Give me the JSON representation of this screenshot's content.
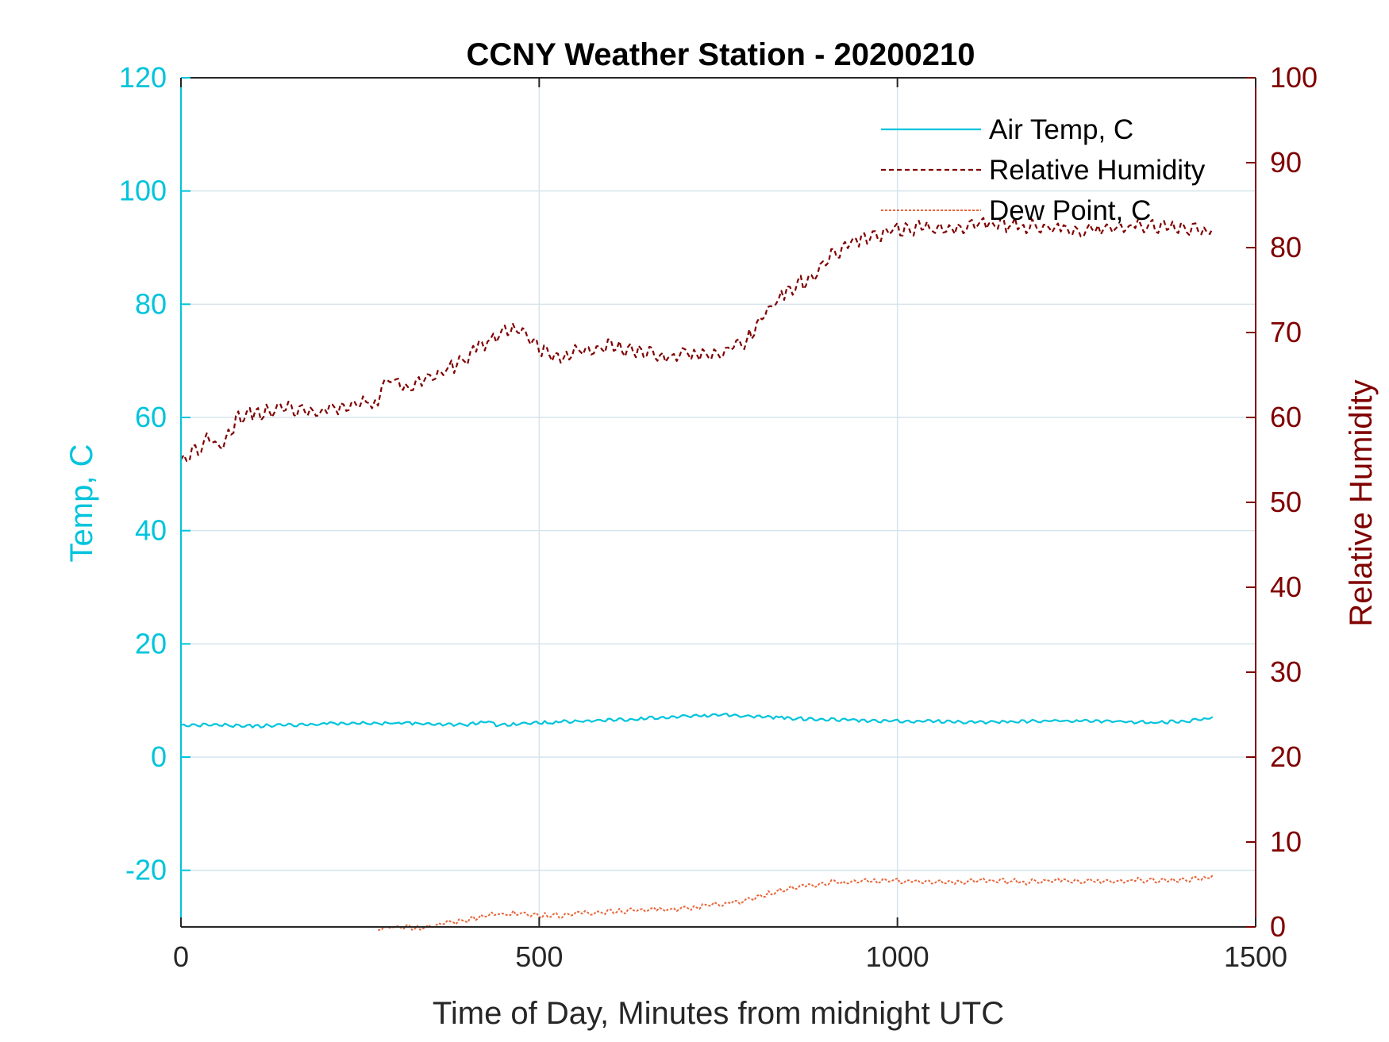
{
  "chart_data": {
    "type": "line",
    "title": "CCNY Weather Station - 20200210",
    "xlabel": "Time of Day, Minutes from midnight UTC",
    "ylabel_left": "Temp, C",
    "ylabel_right": "Relative Humidity",
    "xlim": [
      0,
      1500
    ],
    "ylim_left": [
      -30,
      120
    ],
    "ylim_right": [
      0,
      100
    ],
    "xticks": [
      "0",
      "500",
      "1000",
      "1500"
    ],
    "yticks_left": [
      "120",
      "100",
      "80",
      "60",
      "40",
      "20",
      "0",
      "-20"
    ],
    "yticks_right": [
      "100",
      "90",
      "80",
      "70",
      "60",
      "50",
      "40",
      "30",
      "20",
      "10",
      "0"
    ],
    "grid": true,
    "legend_position": "top-right",
    "colors": {
      "temp": "#00c4dc",
      "rh": "#800000",
      "dew": "#e8663a",
      "grid": "#d6e4ec",
      "axis_x": "#262626"
    },
    "series": [
      {
        "name": "Air Temp, C",
        "axis": "left",
        "style": "solid",
        "x": [
          0,
          50,
          100,
          150,
          200,
          250,
          300,
          350,
          400,
          430,
          440,
          460,
          500,
          550,
          600,
          650,
          700,
          750,
          800,
          850,
          900,
          950,
          1000,
          1050,
          1100,
          1150,
          1200,
          1250,
          1300,
          1350,
          1400,
          1440
        ],
        "y": [
          5.8,
          5.9,
          5.6,
          5.8,
          6.0,
          6.1,
          6.1,
          6.0,
          5.9,
          6.5,
          5.8,
          5.9,
          6.2,
          6.5,
          6.7,
          7.0,
          7.3,
          7.6,
          7.4,
          7.0,
          6.8,
          6.6,
          6.5,
          6.5,
          6.3,
          6.4,
          6.5,
          6.6,
          6.5,
          6.3,
          6.4,
          7.1
        ]
      },
      {
        "name": "Relative Humidity",
        "axis": "right",
        "style": "dashed",
        "x": [
          0,
          20,
          40,
          55,
          70,
          80,
          100,
          150,
          200,
          250,
          275,
          280,
          300,
          310,
          320,
          340,
          370,
          400,
          420,
          440,
          460,
          470,
          480,
          500,
          510,
          530,
          550,
          580,
          600,
          620,
          650,
          680,
          700,
          720,
          740,
          760,
          790,
          800,
          830,
          850,
          880,
          900,
          950,
          1000,
          1030,
          1060,
          1100,
          1140,
          1180,
          1220,
          1260,
          1300,
          1340,
          1380,
          1420,
          1440
        ],
        "y": [
          55.5,
          56.5,
          58,
          57,
          59,
          60.5,
          60.8,
          61.5,
          61,
          62,
          62.3,
          64.5,
          64.8,
          64.2,
          63.8,
          65,
          66,
          67.5,
          69,
          70,
          71,
          70.7,
          70.2,
          68.5,
          68,
          67.5,
          68.5,
          68.5,
          69,
          68.5,
          68,
          67.5,
          67.8,
          68,
          67.5,
          68.5,
          69.5,
          71,
          74,
          75.5,
          77,
          79,
          81.5,
          82.5,
          82.8,
          82.5,
          83,
          83.2,
          83,
          82.8,
          82.5,
          82.8,
          83,
          82.8,
          82.5,
          82.3
        ]
      },
      {
        "name": "Dew Point, C",
        "axis": "left",
        "style": "dotted",
        "x": [
          275,
          300,
          330,
          360,
          400,
          430,
          460,
          500,
          540,
          580,
          620,
          660,
          700,
          740,
          780,
          820,
          860,
          900,
          940,
          980,
          1020,
          1060,
          1100,
          1140,
          1180,
          1220,
          1260,
          1300,
          1340,
          1380,
          1420,
          1440
        ],
        "y": [
          -30,
          -29.8,
          -30,
          -29.3,
          -28.5,
          -27.6,
          -27.3,
          -27.8,
          -27.6,
          -27.2,
          -26.9,
          -26.7,
          -26.6,
          -25.9,
          -25.2,
          -23.9,
          -22.7,
          -22.0,
          -21.8,
          -21.6,
          -21.7,
          -21.9,
          -21.7,
          -21.6,
          -21.8,
          -21.5,
          -21.6,
          -21.7,
          -21.5,
          -21.6,
          -21.3,
          -20.9
        ]
      }
    ]
  }
}
